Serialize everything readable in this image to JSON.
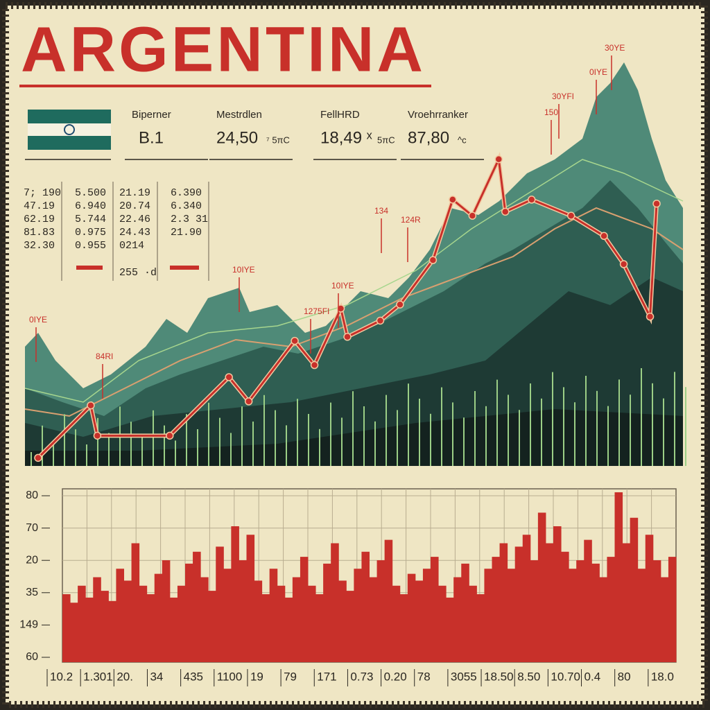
{
  "header": {
    "title": "ARGENTINA"
  },
  "stats": [
    {
      "label": "Biperner",
      "value": "B.1",
      "unit": ""
    },
    {
      "label": "Mestrdlen",
      "value": "24,50",
      "unit": "⁷ 5πC"
    },
    {
      "label": "FellHRD",
      "value": "18,49 ˣ",
      "unit": "5πC"
    },
    {
      "label": "Vroehrranker",
      "value": "87,80",
      "unit": "^c"
    }
  ],
  "number_columns": [
    [
      "7; 190",
      "47.19",
      "62.19",
      "81.83",
      "32.30"
    ],
    [
      "5.500",
      "6.940",
      "5.744",
      "0.975",
      "0.955"
    ],
    [
      "21.19",
      "20.74",
      "22.46",
      "24.43",
      "0214",
      "255 ·d"
    ],
    [
      "6.390",
      "6.340",
      "2.3 31",
      "21.90"
    ]
  ],
  "main_chart": {
    "annotations": [
      "0IYE",
      "84RI",
      "10IYE",
      "1275FI",
      "10IYE",
      "134",
      "124R",
      "30YE",
      "0IYE",
      "30YFI",
      "150"
    ],
    "x": [
      2,
      10,
      11,
      22,
      31,
      34,
      41,
      44,
      48,
      49,
      54,
      57,
      62,
      65,
      68,
      72,
      73,
      77,
      83,
      88,
      91,
      95,
      96
    ],
    "values": [
      2,
      15,
      7.5,
      7.5,
      22,
      16,
      31,
      25,
      39,
      32,
      36,
      40,
      51,
      66,
      62,
      76,
      63,
      66,
      62,
      57,
      50,
      37,
      65
    ]
  },
  "bottom_chart": {
    "y_labels": [
      "80",
      "70",
      "20",
      "35",
      "149",
      "60"
    ],
    "x_labels": [
      "10.2",
      "1.301",
      "20.",
      "34",
      "435",
      "1100",
      "19",
      "79",
      "171",
      "0.73",
      "0.20",
      "78",
      "3055",
      "18.50",
      "8.50",
      "10.70",
      "0.4",
      "80",
      "18.0"
    ],
    "values": [
      40,
      35,
      45,
      38,
      50,
      42,
      36,
      55,
      48,
      70,
      45,
      40,
      52,
      60,
      38,
      45,
      58,
      65,
      50,
      42,
      68,
      55,
      80,
      60,
      75,
      48,
      40,
      55,
      45,
      38,
      50,
      62,
      45,
      40,
      58,
      70,
      48,
      42,
      55,
      65,
      50,
      60,
      72,
      45,
      40,
      52,
      48,
      55,
      62,
      45,
      38,
      50,
      58,
      45,
      40,
      55,
      62,
      70,
      55,
      68,
      75,
      60,
      88,
      70,
      80,
      65,
      55,
      60,
      72,
      58,
      50,
      62,
      100,
      70,
      85,
      55,
      75,
      60,
      50,
      62
    ]
  }
}
